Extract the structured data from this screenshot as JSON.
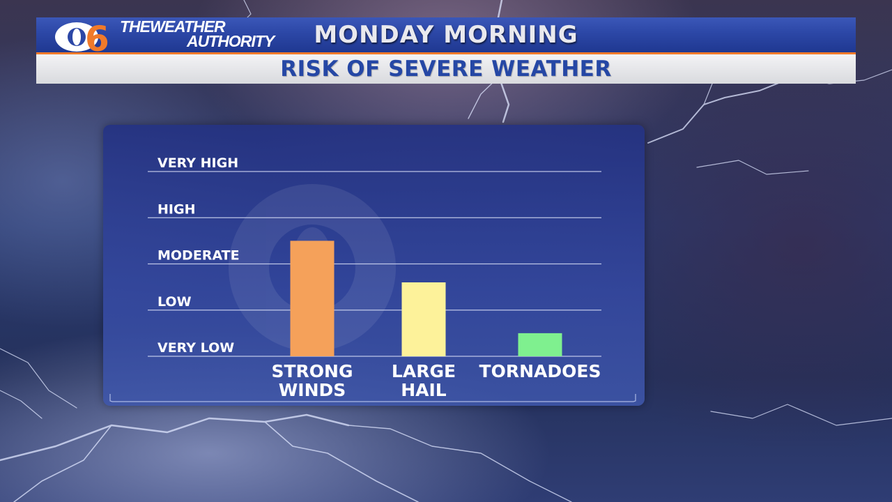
{
  "header": {
    "brand_line1": "THEWEATHER",
    "brand_line2": "AUTHORITY",
    "title": "MONDAY MORNING",
    "subtitle": "RISK OF SEVERE WEATHER"
  },
  "colors": {
    "header_blue": "#2c47a6",
    "accent_orange": "#f07a2a",
    "subtitle_blue": "#2547a5",
    "panel_blue": "#34489e"
  },
  "chart_data": {
    "type": "bar",
    "categories": [
      "STRONG WINDS",
      "LARGE HAIL",
      "TORNADOES"
    ],
    "category_lines": [
      [
        "STRONG",
        "WINDS"
      ],
      [
        "LARGE",
        "HAIL"
      ],
      [
        "TORNADOES"
      ]
    ],
    "values": [
      2.5,
      1.6,
      0.5
    ],
    "bar_colors": [
      "#f5a15a",
      "#fdf29a",
      "#7ff08f"
    ],
    "y_levels": [
      "VERY LOW",
      "LOW",
      "MODERATE",
      "HIGH",
      "VERY HIGH"
    ],
    "ylim": [
      0,
      4
    ],
    "grid": true,
    "legend": "none",
    "title": "RISK OF SEVERE WEATHER",
    "xlabel": "",
    "ylabel": ""
  }
}
